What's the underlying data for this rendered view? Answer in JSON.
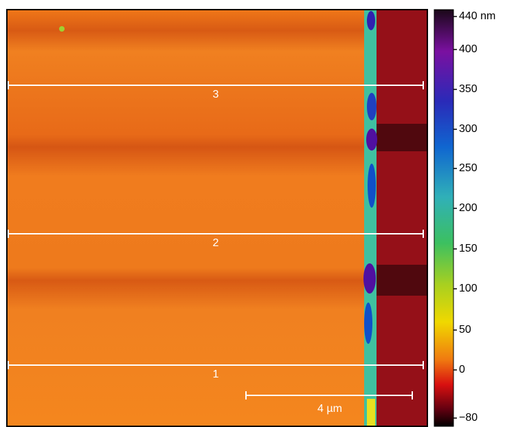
{
  "image": {
    "profile_lines": [
      "3",
      "2",
      "1"
    ],
    "scale_bar": "4 µm"
  },
  "colorbar": {
    "ticks": [
      "440 nm",
      "400",
      "350",
      "300",
      "250",
      "200",
      "150",
      "100",
      "50",
      "0",
      "−80"
    ]
  }
}
